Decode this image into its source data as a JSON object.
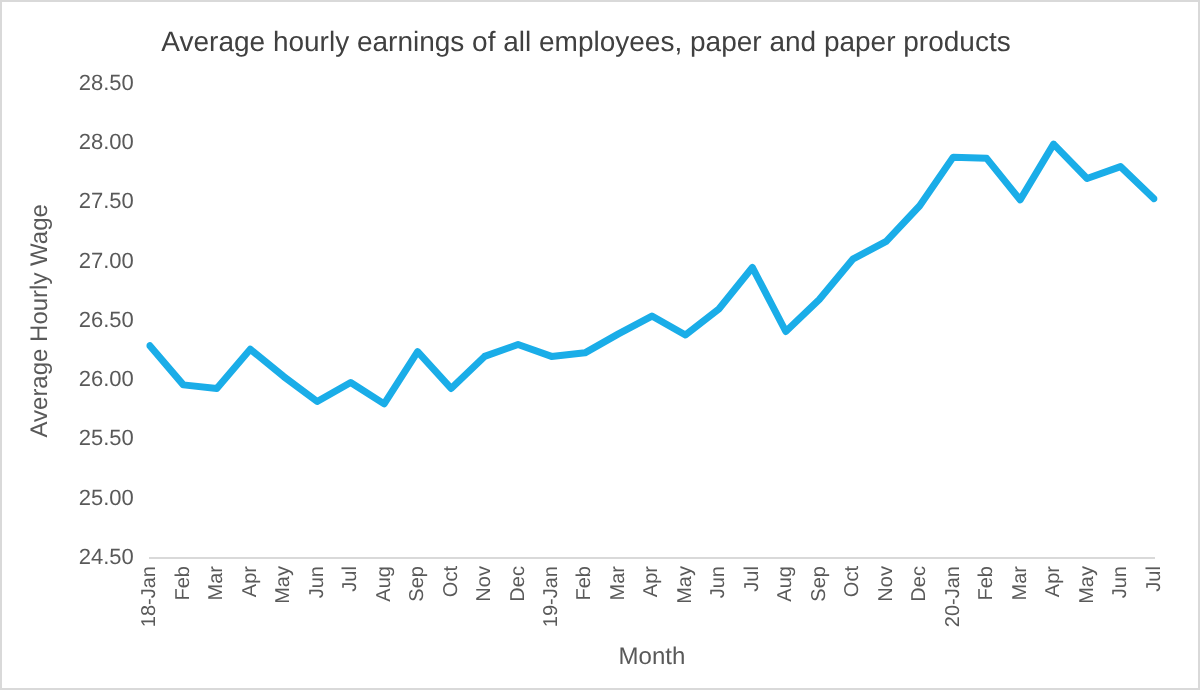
{
  "chart_data": {
    "type": "line",
    "title": "Average hourly earnings of all employees, paper and paper products",
    "xlabel": "Month",
    "ylabel": "Average Hourly Wage",
    "categories": [
      "18-Jan",
      "Feb",
      "Mar",
      "Apr",
      "May",
      "Jun",
      "Jul",
      "Aug",
      "Sep",
      "Oct",
      "Nov",
      "Dec",
      "19-Jan",
      "Feb",
      "Mar",
      "Apr",
      "May",
      "Jun",
      "Jul",
      "Aug",
      "Sep",
      "Oct",
      "Nov",
      "Dec",
      "20-Jan",
      "Feb",
      "Mar",
      "Apr",
      "May",
      "Jun",
      "Jul"
    ],
    "series": [
      {
        "color": "#1aade8",
        "values": [
          26.29,
          25.96,
          25.93,
          26.26,
          26.03,
          25.82,
          25.98,
          25.8,
          26.24,
          25.93,
          26.2,
          26.3,
          26.2,
          26.23,
          26.39,
          26.54,
          26.38,
          26.6,
          26.95,
          26.41,
          26.68,
          27.02,
          27.17,
          27.47,
          27.88,
          27.87,
          27.52,
          27.99,
          27.7,
          27.8,
          27.53
        ]
      }
    ],
    "ylim": [
      24.5,
      28.5
    ],
    "yticks": [
      {
        "value": 24.5,
        "label": "24.50"
      },
      {
        "value": 25,
        "label": "25.00"
      },
      {
        "value": 25.5,
        "label": "25.50"
      },
      {
        "value": 26,
        "label": "26.00"
      },
      {
        "value": 26.5,
        "label": "26.50"
      },
      {
        "value": 27,
        "label": "27.00"
      },
      {
        "value": 27.5,
        "label": "27.50"
      },
      {
        "value": 28,
        "label": "28.00"
      },
      {
        "value": 28.5,
        "label": "28.50"
      }
    ],
    "grid": false,
    "legend": false,
    "marker": "none",
    "line_style": "solid"
  }
}
